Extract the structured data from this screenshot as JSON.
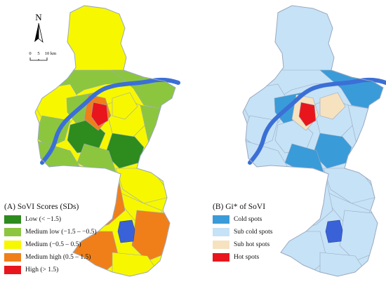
{
  "panel_a": {
    "title": "(A) SoVI Scores (SDs)",
    "classes": [
      {
        "label": "Low (< −1.5)",
        "color": "#2e8b1e"
      },
      {
        "label": "Medium low (−1.5 – −0.5)",
        "color": "#8cc63f"
      },
      {
        "label": "Medium (−0.5 – 0.5)",
        "color": "#f7f700"
      },
      {
        "label": "Medium high (0.5 – 1.5)",
        "color": "#f07f1a"
      },
      {
        "label": "High (> 1.5)",
        "color": "#e8161c"
      }
    ]
  },
  "panel_b": {
    "title": "(B) Gi* of SoVI",
    "classes": [
      {
        "label": "Cold spots",
        "color": "#3a9bd9"
      },
      {
        "label": "Sub cold spots",
        "color": "#c6e2f6"
      },
      {
        "label": "Sub hot spots",
        "color": "#f6e2bf"
      },
      {
        "label": "Hot spots",
        "color": "#e8161c"
      }
    ]
  },
  "north_arrow": {
    "label": "N",
    "icon": "north-arrow-icon"
  },
  "scale_bar": {
    "ticks": [
      "0",
      "5",
      "10 km"
    ]
  },
  "river_color": "#3b6fd6",
  "lake_color": "#3a62d8",
  "border_color": "#9aa8c0"
}
